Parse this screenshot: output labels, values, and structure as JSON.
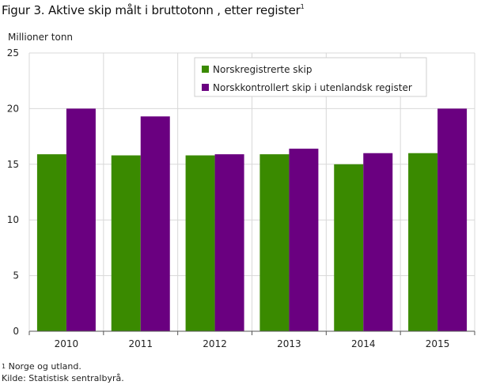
{
  "title": "Figur 3. Aktive skip målt i bruttotonn , etter register",
  "title_sup": "1",
  "footnote_num": "1",
  "footnote_text": " Norge og utland.",
  "source": "Kilde: Statistisk sentralbyrå.",
  "colors": {
    "norsk": "#3a8a00",
    "kontroll": "#6a0080",
    "grid": "#d8d8d8",
    "axis": "#555555"
  },
  "chart_data": {
    "type": "bar",
    "title": "Figur 3. Aktive skip målt i bruttotonn , etter register",
    "ylabel": "Millioner  tonn",
    "xlabel": "",
    "categories": [
      "2010",
      "2011",
      "2012",
      "2013",
      "2014",
      "2015"
    ],
    "series": [
      {
        "name": "Norskregistrerte skip",
        "values": [
          15.9,
          15.8,
          15.8,
          15.9,
          15.0,
          16.0
        ]
      },
      {
        "name": "Norskkontrollert skip i utenlandsk register",
        "values": [
          20.0,
          19.3,
          15.9,
          16.4,
          16.0,
          20.0
        ]
      }
    ],
    "ylim": [
      0,
      25
    ],
    "yticks": [
      "0",
      "5",
      "10",
      "15",
      "20",
      "25"
    ],
    "grid": true,
    "legend_position": "top-right"
  }
}
